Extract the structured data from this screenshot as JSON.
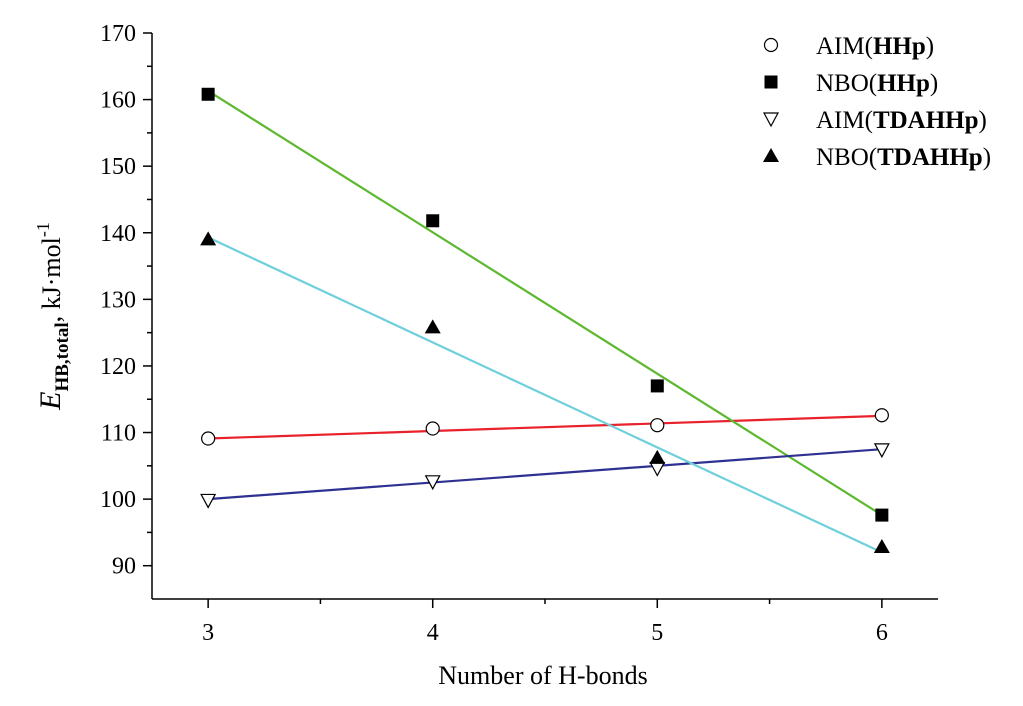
{
  "chart_data": {
    "type": "scatter",
    "xlabel": "Number of H-bonds",
    "ylabel": {
      "main": "E",
      "subscript": "HB,total",
      "unit": ", kJ·mol",
      "superscript": "-1"
    },
    "x_ticks": [
      3,
      4,
      5,
      6
    ],
    "y_ticks": [
      90,
      100,
      110,
      120,
      130,
      140,
      150,
      160,
      170
    ],
    "xlim": [
      2.75,
      6.25
    ],
    "ylim": [
      85,
      170
    ],
    "legend_position": "top-right",
    "series": [
      {
        "name_prefix": "AIM(",
        "name_bold": "HHp",
        "name_suffix": ")",
        "marker": "open-circle",
        "x": [
          3,
          4,
          5,
          6
        ],
        "y": [
          109.1,
          110.6,
          111.1,
          112.6
        ],
        "fit": {
          "x": [
            3,
            6
          ],
          "y": [
            109.1,
            112.5
          ],
          "color": "#e8212b"
        }
      },
      {
        "name_prefix": "NBO(",
        "name_bold": "HHp",
        "name_suffix": ")",
        "marker": "filled-square",
        "x": [
          3,
          4,
          5,
          6
        ],
        "y": [
          160.8,
          141.8,
          117.0,
          97.6
        ],
        "fit": {
          "x": [
            3,
            6
          ],
          "y": [
            161.3,
            97.6
          ],
          "color": "#5cb82e"
        }
      },
      {
        "name_prefix": "AIM(",
        "name_bold": "TDAHHp",
        "name_suffix": ")",
        "marker": "open-triangle-down",
        "x": [
          3,
          4,
          5,
          6
        ],
        "y": [
          99.8,
          102.6,
          104.6,
          107.4
        ],
        "fit": {
          "x": [
            3,
            6
          ],
          "y": [
            100.0,
            107.5
          ],
          "color": "#2e3192"
        }
      },
      {
        "name_prefix": "NBO(",
        "name_bold": "TDAHHp",
        "name_suffix": ")",
        "marker": "filled-triangle-up",
        "x": [
          3,
          4,
          5,
          6
        ],
        "y": [
          139.0,
          125.8,
          106.2,
          92.8
        ],
        "fit": {
          "x": [
            3,
            6
          ],
          "y": [
            139.3,
            92.0
          ],
          "color": "#6fcfdc"
        }
      }
    ]
  }
}
